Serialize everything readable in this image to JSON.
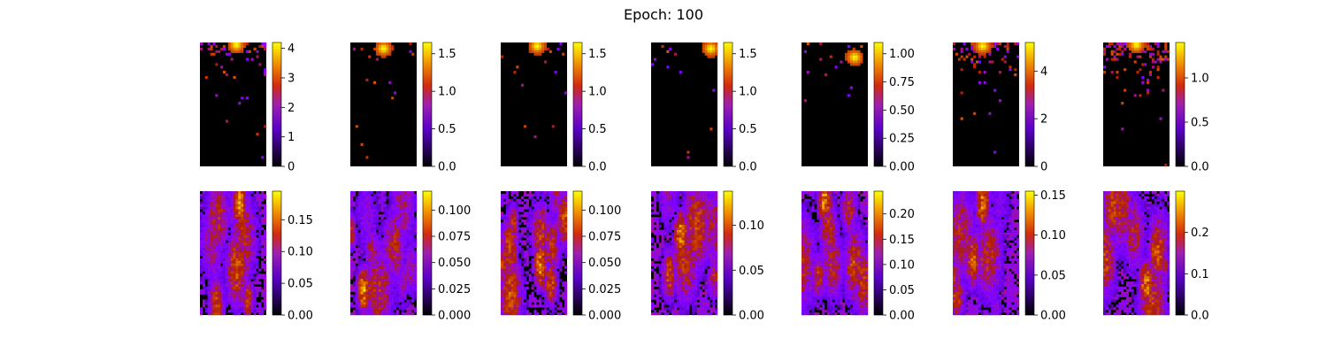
{
  "figure": {
    "title": "Epoch: 100"
  },
  "chart_data": {
    "type": "heatmap",
    "title": "Epoch: 100",
    "colormap": "gnuplot",
    "colormap_stops": [
      "#000000",
      "#7a00f0",
      "#c41a1a",
      "#f08400",
      "#ffff00"
    ],
    "grid": false,
    "panels": [
      {
        "row": 1,
        "col": 1,
        "vmin": 0,
        "vmax": 4.2,
        "ticks": [
          "0",
          "1",
          "2",
          "3",
          "4"
        ],
        "tick_values": [
          0,
          1,
          2,
          3,
          4
        ],
        "pattern": "sparse-top",
        "density": 0.45,
        "hotspot": [
          0.55,
          0.02
        ]
      },
      {
        "row": 1,
        "col": 2,
        "vmin": 0,
        "vmax": 1.65,
        "ticks": [
          "0.0",
          "0.5",
          "1.0",
          "1.5"
        ],
        "tick_values": [
          0,
          0.5,
          1.0,
          1.5
        ],
        "pattern": "sparse-top",
        "density": 0.06,
        "hotspot": [
          0.5,
          0.05
        ]
      },
      {
        "row": 1,
        "col": 3,
        "vmin": 0,
        "vmax": 1.65,
        "ticks": [
          "0.0",
          "0.5",
          "1.0",
          "1.5"
        ],
        "tick_values": [
          0,
          0.5,
          1.0,
          1.5
        ],
        "pattern": "sparse-top",
        "density": 0.07,
        "hotspot": [
          0.55,
          0.03
        ]
      },
      {
        "row": 1,
        "col": 4,
        "vmin": 0,
        "vmax": 1.65,
        "ticks": [
          "0.0",
          "0.5",
          "1.0",
          "1.5"
        ],
        "tick_values": [
          0,
          0.5,
          1.0,
          1.5
        ],
        "pattern": "sparse-top",
        "density": 0.05,
        "hotspot": [
          0.9,
          0.05
        ]
      },
      {
        "row": 1,
        "col": 5,
        "vmin": 0,
        "vmax": 1.1,
        "ticks": [
          "0.00",
          "0.25",
          "0.50",
          "0.75",
          "1.00"
        ],
        "tick_values": [
          0,
          0.25,
          0.5,
          0.75,
          1.0
        ],
        "pattern": "sparse-top",
        "density": 0.08,
        "hotspot": [
          0.8,
          0.12
        ]
      },
      {
        "row": 1,
        "col": 6,
        "vmin": 0,
        "vmax": 5.2,
        "ticks": [
          "0",
          "2",
          "4"
        ],
        "tick_values": [
          0,
          2,
          4
        ],
        "pattern": "sparse-top",
        "density": 0.55,
        "hotspot": [
          0.45,
          0.03
        ]
      },
      {
        "row": 1,
        "col": 7,
        "vmin": 0,
        "vmax": 1.4,
        "ticks": [
          "0.0",
          "0.5",
          "1.0"
        ],
        "tick_values": [
          0,
          0.5,
          1.0
        ],
        "pattern": "sparse-top",
        "density": 0.75,
        "hotspot": [
          0.5,
          0.02
        ]
      },
      {
        "row": 2,
        "col": 1,
        "vmin": 0,
        "vmax": 0.195,
        "ticks": [
          "0.00",
          "0.05",
          "0.10",
          "0.15"
        ],
        "tick_values": [
          0,
          0.05,
          0.1,
          0.15
        ],
        "pattern": "dense",
        "density": 0.72,
        "hotspot": [
          0.6,
          0.1
        ]
      },
      {
        "row": 2,
        "col": 2,
        "vmin": 0,
        "vmax": 0.118,
        "ticks": [
          "0.000",
          "0.025",
          "0.050",
          "0.075",
          "0.100"
        ],
        "tick_values": [
          0,
          0.025,
          0.05,
          0.075,
          0.1
        ],
        "pattern": "dense",
        "density": 0.7,
        "hotspot": [
          0.2,
          0.8
        ]
      },
      {
        "row": 2,
        "col": 3,
        "vmin": 0,
        "vmax": 0.118,
        "ticks": [
          "0.000",
          "0.025",
          "0.050",
          "0.075",
          "0.100"
        ],
        "tick_values": [
          0,
          0.025,
          0.05,
          0.075,
          0.1
        ],
        "pattern": "dense",
        "density": 0.55,
        "hotspot": [
          0.6,
          0.6
        ]
      },
      {
        "row": 2,
        "col": 4,
        "vmin": 0,
        "vmax": 0.138,
        "ticks": [
          "0.00",
          "0.05",
          "0.10"
        ],
        "tick_values": [
          0,
          0.05,
          0.1
        ],
        "pattern": "dense",
        "density": 0.72,
        "hotspot": [
          0.45,
          0.35
        ]
      },
      {
        "row": 2,
        "col": 5,
        "vmin": 0,
        "vmax": 0.245,
        "ticks": [
          "0.00",
          "0.05",
          "0.10",
          "0.15",
          "0.20"
        ],
        "tick_values": [
          0,
          0.05,
          0.1,
          0.15,
          0.2
        ],
        "pattern": "dense",
        "density": 0.75,
        "hotspot": [
          0.35,
          0.08
        ]
      },
      {
        "row": 2,
        "col": 6,
        "vmin": 0,
        "vmax": 0.155,
        "ticks": [
          "0.00",
          "0.05",
          "0.10",
          "0.15"
        ],
        "tick_values": [
          0,
          0.05,
          0.1,
          0.15
        ],
        "pattern": "dense",
        "density": 0.78,
        "hotspot": [
          0.45,
          0.1
        ]
      },
      {
        "row": 2,
        "col": 7,
        "vmin": 0,
        "vmax": 0.3,
        "ticks": [
          "0.0",
          "0.1",
          "0.2"
        ],
        "tick_values": [
          0,
          0.1,
          0.2
        ],
        "pattern": "dense",
        "density": 0.7,
        "hotspot": [
          0.65,
          0.75
        ]
      }
    ]
  }
}
